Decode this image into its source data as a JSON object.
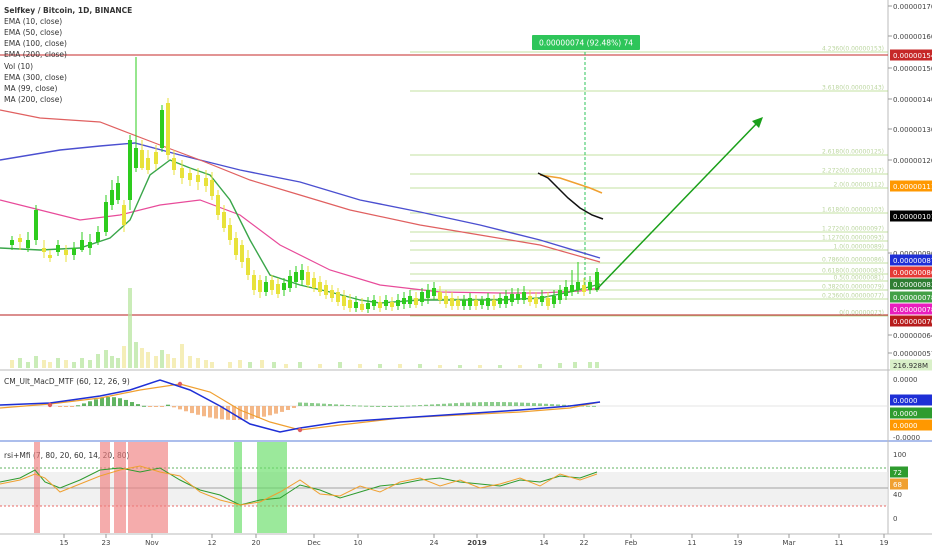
{
  "header": {
    "title": "Selfkey / Bitcoin, 1D, BINANCE",
    "indicators": [
      "EMA (10, close)",
      "EMA (50, close)",
      "EMA (100, close)",
      "EMA (200, close)",
      "Vol (10)",
      "EMA (300, close)",
      "MA (99, close)",
      "MA (200, close)"
    ]
  },
  "measure_label": "0.00000074 (92.48%) 74",
  "macd_label": "CM_Ult_MacD_MTF (60, 12, 26, 9)",
  "rsi_label": "rsi+Mfi (7, 80, 20, 60, 14, 20, 80)",
  "x_axis": {
    "ticks": [
      {
        "label": "15",
        "bold": false
      },
      {
        "label": "23",
        "bold": false
      },
      {
        "label": "Nov",
        "bold": false
      },
      {
        "label": "12",
        "bold": false
      },
      {
        "label": "20",
        "bold": false
      },
      {
        "label": "Dec",
        "bold": false
      },
      {
        "label": "10",
        "bold": false
      },
      {
        "label": "24",
        "bold": false
      },
      {
        "label": "2019",
        "bold": true
      },
      {
        "label": "14",
        "bold": false
      },
      {
        "label": "22",
        "bold": false
      },
      {
        "label": "Feb",
        "bold": false
      },
      {
        "label": "11",
        "bold": false
      },
      {
        "label": "19",
        "bold": false
      },
      {
        "label": "Mar",
        "bold": false
      },
      {
        "label": "11",
        "bold": false
      },
      {
        "label": "19",
        "bold": false
      }
    ]
  },
  "price_axis": {
    "ticks": [
      "0.00000170",
      "0.00000160",
      "0.00000150",
      "0.00000140",
      "0.00000130",
      "0.00000120",
      "0.00000090",
      "0.00000064",
      "0.00000057"
    ],
    "tags": [
      {
        "label": "0.00000154",
        "bg": "#c62828",
        "fg": "#ffffff"
      },
      {
        "label": "0.00000111",
        "bg": "#ff9800",
        "fg": "#ffffff"
      },
      {
        "label": "0.00000101",
        "bg": "#000000",
        "fg": "#ffffff"
      },
      {
        "label": "0.00000087",
        "bg": "#1e2fd6",
        "fg": "#ffffff"
      },
      {
        "label": "0.00000086",
        "bg": "#e53935",
        "fg": "#ffffff"
      },
      {
        "label": "0.00000083",
        "bg": "#2e7d32",
        "fg": "#ffffff"
      },
      {
        "label": "0.00000078",
        "bg": "#43a047",
        "fg": "#ffffff"
      },
      {
        "label": "0.00000078",
        "bg": "#e91ebe",
        "fg": "#ffffff"
      },
      {
        "label": "0.00000070",
        "bg": "#b71c1c",
        "fg": "#ffffff"
      },
      {
        "label": "216.928M",
        "bg": "#d9f0c8",
        "fg": "#333333"
      }
    ]
  },
  "macd_axis": {
    "ticks": [
      "0.0000",
      "-0.0000"
    ],
    "tags": [
      {
        "label": "0.0000",
        "bg": "#1e2fd6",
        "fg": "#ffffff"
      },
      {
        "label": "0.0000",
        "bg": "#2e9b2e",
        "fg": "#ffffff"
      },
      {
        "label": "0.0000",
        "bg": "#ff9800",
        "fg": "#ffffff"
      }
    ]
  },
  "rsi_axis": {
    "ticks": [
      "100",
      "40",
      "0"
    ],
    "tags": [
      {
        "label": "72",
        "bg": "#2e9b2e",
        "fg": "#ffffff"
      },
      {
        "label": "68",
        "bg": "#f0a030",
        "fg": "#ffffff"
      }
    ]
  },
  "fib_levels": [
    {
      "label": "4.2360(0.00000153)"
    },
    {
      "label": "3.6180(0.00000143)"
    },
    {
      "label": "2.6180(0.00000125)"
    },
    {
      "label": "2.2720(0.00000117)"
    },
    {
      "label": "2.0(0.00000112)"
    },
    {
      "label": "1.6180(0.00000103)"
    },
    {
      "label": "1.2720(0.00000097)"
    },
    {
      "label": "1.1270(0.00000093)"
    },
    {
      "label": "1.0(0.00000089)"
    },
    {
      "label": "0.7860(0.00000086)"
    },
    {
      "label": "0.6180(0.00000083)"
    },
    {
      "label": "0.5(0.00000081)"
    },
    {
      "label": "0.3820(0.00000079)"
    },
    {
      "label": "0.2360(0.00000077)"
    },
    {
      "label": "0(0.00000073)"
    }
  ],
  "colors": {
    "up": "#2ecc1e",
    "down": "#e8e23a",
    "ema_green": "#3aa64a",
    "ema_blue": "#4b4fd0",
    "ema_pink": "#e84b9a",
    "ema_red": "#e06060",
    "fib": "#9ccc65",
    "arrow": "#1aa01a",
    "measure": "#2ec55a",
    "overbought": "#f08080",
    "oversold": "#66dd66"
  },
  "chart_data": [
    {
      "type": "candlestick",
      "title": "Selfkey / Bitcoin, 1D, BINANCE",
      "x_range": [
        "2018-10-05",
        "2019-01-25"
      ],
      "ylim": [
        5.4e-07,
        1.75e-06
      ],
      "annotations": [
        "0.00000074 (92.48%) 74"
      ],
      "series": [
        {
          "name": "EMA (10, close)",
          "color": "#3aa64a",
          "values": [
            88,
            89,
            90,
            91,
            92,
            94,
            97,
            100,
            104,
            108,
            112,
            116,
            117,
            115,
            110,
            104,
            97,
            92,
            88,
            84,
            80,
            78,
            76,
            76,
            75,
            75,
            74,
            74,
            74,
            74,
            74,
            75,
            75,
            75,
            75,
            75,
            75,
            76,
            77,
            78,
            79,
            81
          ]
        },
        {
          "name": "EMA (50, close)",
          "color": "#4b4fd0",
          "values": [
            138,
            135,
            131,
            127,
            124,
            122,
            121,
            120,
            119,
            119,
            119,
            118,
            117,
            116,
            115,
            114,
            113,
            112,
            111,
            109,
            108,
            106,
            105,
            103,
            101,
            100,
            98,
            97,
            96,
            95,
            94,
            93,
            92,
            91,
            90,
            90,
            89,
            88,
            88,
            87,
            87,
            87
          ]
        }
      ]
    },
    {
      "type": "line",
      "title": "CM_Ult_MacD_MTF (60, 12, 26, 9)",
      "ylim": [
        -1,
        1
      ]
    },
    {
      "type": "line",
      "title": "rsi+Mfi (7, 80, 20, 60, 14, 20, 80)",
      "ylim": [
        0,
        100
      ],
      "overbought_zones": [
        "Oct 11",
        "Oct 19-22",
        "Oct 24-Nov 2"
      ],
      "oversold_zones": [
        "Nov 17",
        "Nov 20-24"
      ]
    }
  ]
}
